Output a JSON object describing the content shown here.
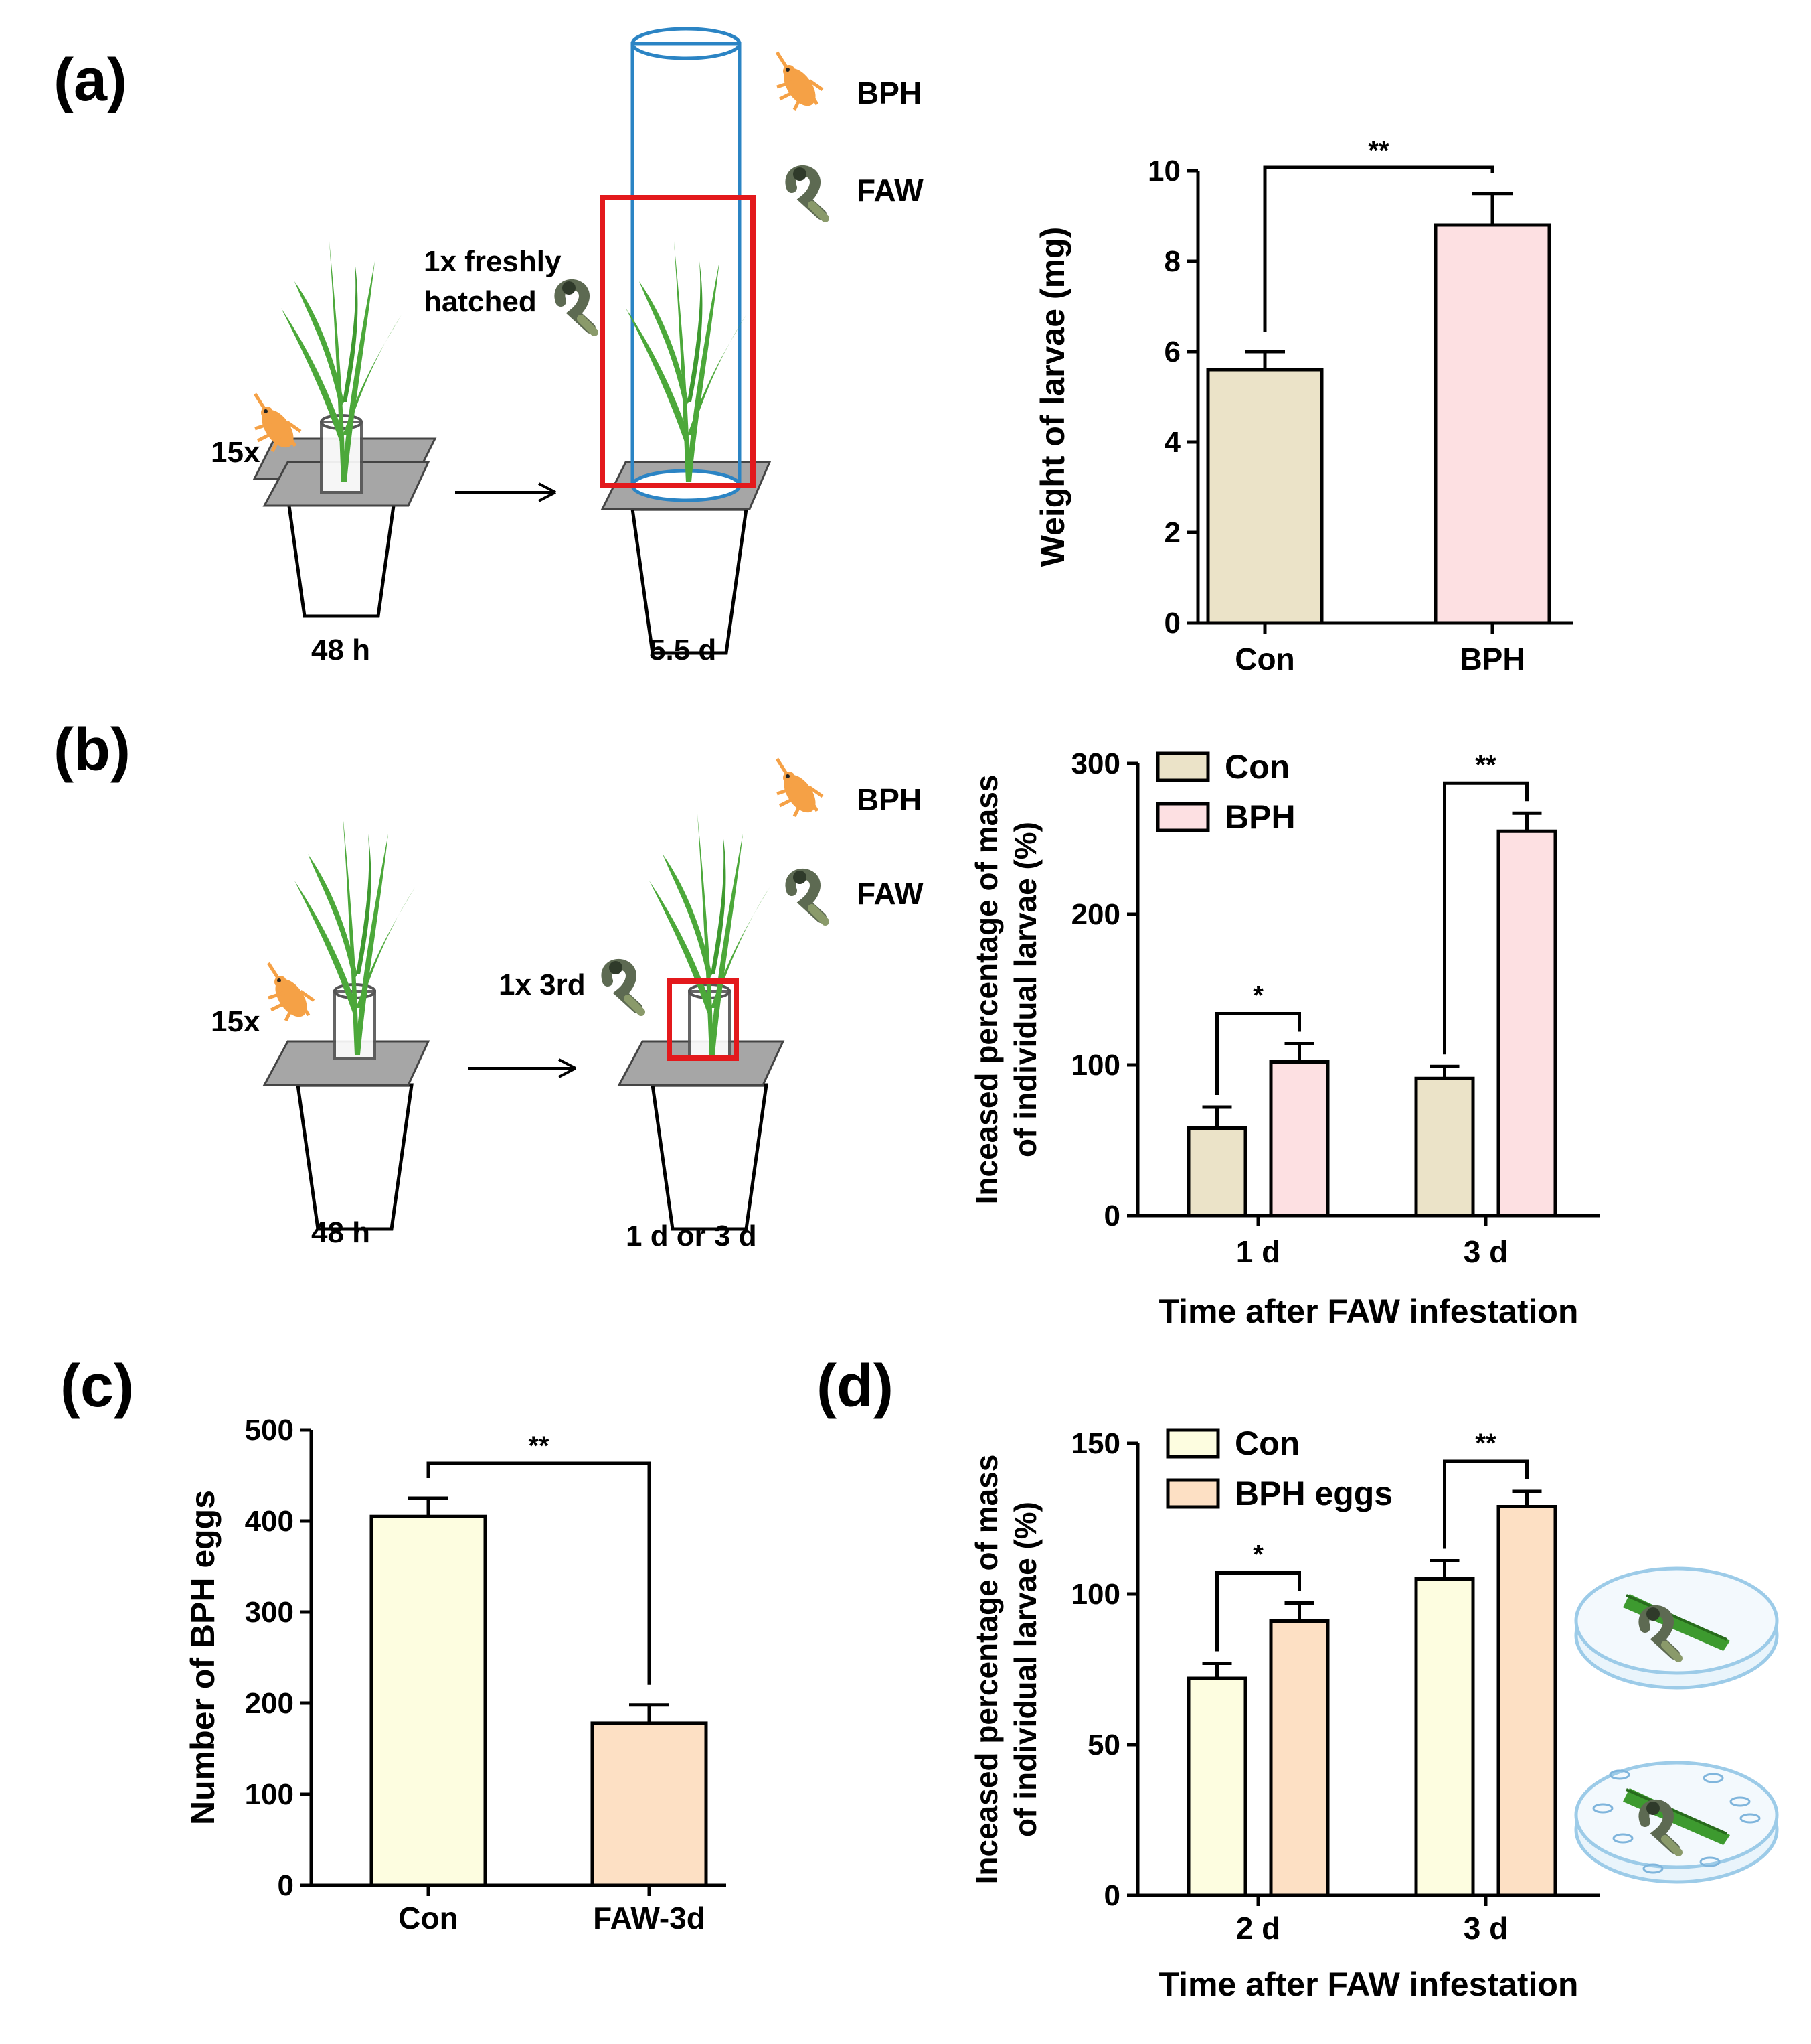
{
  "panels": {
    "a": {
      "label": "(a)",
      "legend": {
        "bph": "BPH",
        "faw": "FAW"
      },
      "schematic": {
        "count_bph": "15x",
        "faw_line1": "1x freshly",
        "faw_line2": "hatched",
        "time_left": "48 h",
        "time_right": "5.5 d"
      }
    },
    "b": {
      "label": "(b)",
      "legend": {
        "bph": "BPH",
        "faw": "FAW"
      },
      "schematic": {
        "count_bph": "15x",
        "faw_line1": "1x 3rd",
        "time_left": "48 h",
        "time_right": "1 d or 3 d"
      }
    },
    "c": {
      "label": "(c)"
    },
    "d": {
      "label": "(d)"
    }
  },
  "colors": {
    "con": "#ebe3c8",
    "bph": "#fde0e2",
    "con_light": "#fdfde0",
    "eggs": "#fde0c4",
    "leaf": "#4ca83a",
    "bph_insect": "#f5a146",
    "faw_larva": "#5d6a52",
    "red_box": "#e3191c",
    "cylinder": "#2b84c4",
    "tray": "#a0a0a0",
    "dish": "#cfe6f4"
  },
  "chart_data": [
    {
      "panel": "a",
      "type": "bar",
      "categories": [
        "Con",
        "BPH"
      ],
      "values": [
        5.6,
        8.8
      ],
      "errors": [
        0.4,
        0.7
      ],
      "ylabel": "Weight of larvae (mg)",
      "xlabel": "",
      "ylim": [
        0,
        10
      ],
      "yticks": [
        "0",
        "2",
        "4",
        "6",
        "8",
        "10"
      ],
      "significance": [
        {
          "label": "**",
          "between": [
            "Con",
            "BPH"
          ]
        }
      ],
      "legend": []
    },
    {
      "panel": "b",
      "type": "bar",
      "categories": [
        "1 d",
        "3 d"
      ],
      "series": [
        {
          "name": "Con",
          "values": [
            58,
            91
          ],
          "errors": [
            14,
            8
          ]
        },
        {
          "name": "BPH",
          "values": [
            102,
            255
          ],
          "errors": [
            12,
            12
          ]
        }
      ],
      "ylabel_line1": "Inceased percentage of mass",
      "ylabel_line2": "of individual larvae (%)",
      "xlabel": "Time after FAW infestation",
      "ylim": [
        0,
        300
      ],
      "yticks": [
        "0",
        "100",
        "200",
        "300"
      ],
      "significance": [
        {
          "label": "*",
          "group": "1 d"
        },
        {
          "label": "**",
          "group": "3 d"
        }
      ],
      "legend": [
        "Con",
        "BPH"
      ]
    },
    {
      "panel": "c",
      "type": "bar",
      "categories": [
        "Con",
        "FAW-3d"
      ],
      "values": [
        405,
        178
      ],
      "errors": [
        20,
        20
      ],
      "ylabel": "Number of BPH eggs",
      "xlabel": "",
      "ylim": [
        0,
        500
      ],
      "yticks": [
        "0",
        "100",
        "200",
        "300",
        "400",
        "500"
      ],
      "significance": [
        {
          "label": "**",
          "between": [
            "Con",
            "FAW-3d"
          ]
        }
      ],
      "legend": []
    },
    {
      "panel": "d",
      "type": "bar",
      "categories": [
        "2 d",
        "3 d"
      ],
      "series": [
        {
          "name": "Con",
          "values": [
            72,
            105
          ],
          "errors": [
            5,
            6
          ]
        },
        {
          "name": "BPH eggs",
          "values": [
            91,
            129
          ],
          "errors": [
            6,
            5
          ]
        }
      ],
      "ylabel_line1": "Inceased percentage of mass",
      "ylabel_line2": "of individual larvae (%)",
      "xlabel": "Time after FAW infestation",
      "ylim": [
        0,
        150
      ],
      "yticks": [
        "0",
        "50",
        "100",
        "150"
      ],
      "significance": [
        {
          "label": "*",
          "group": "2 d"
        },
        {
          "label": "**",
          "group": "3 d"
        }
      ],
      "legend": [
        "Con",
        "BPH eggs"
      ]
    }
  ]
}
